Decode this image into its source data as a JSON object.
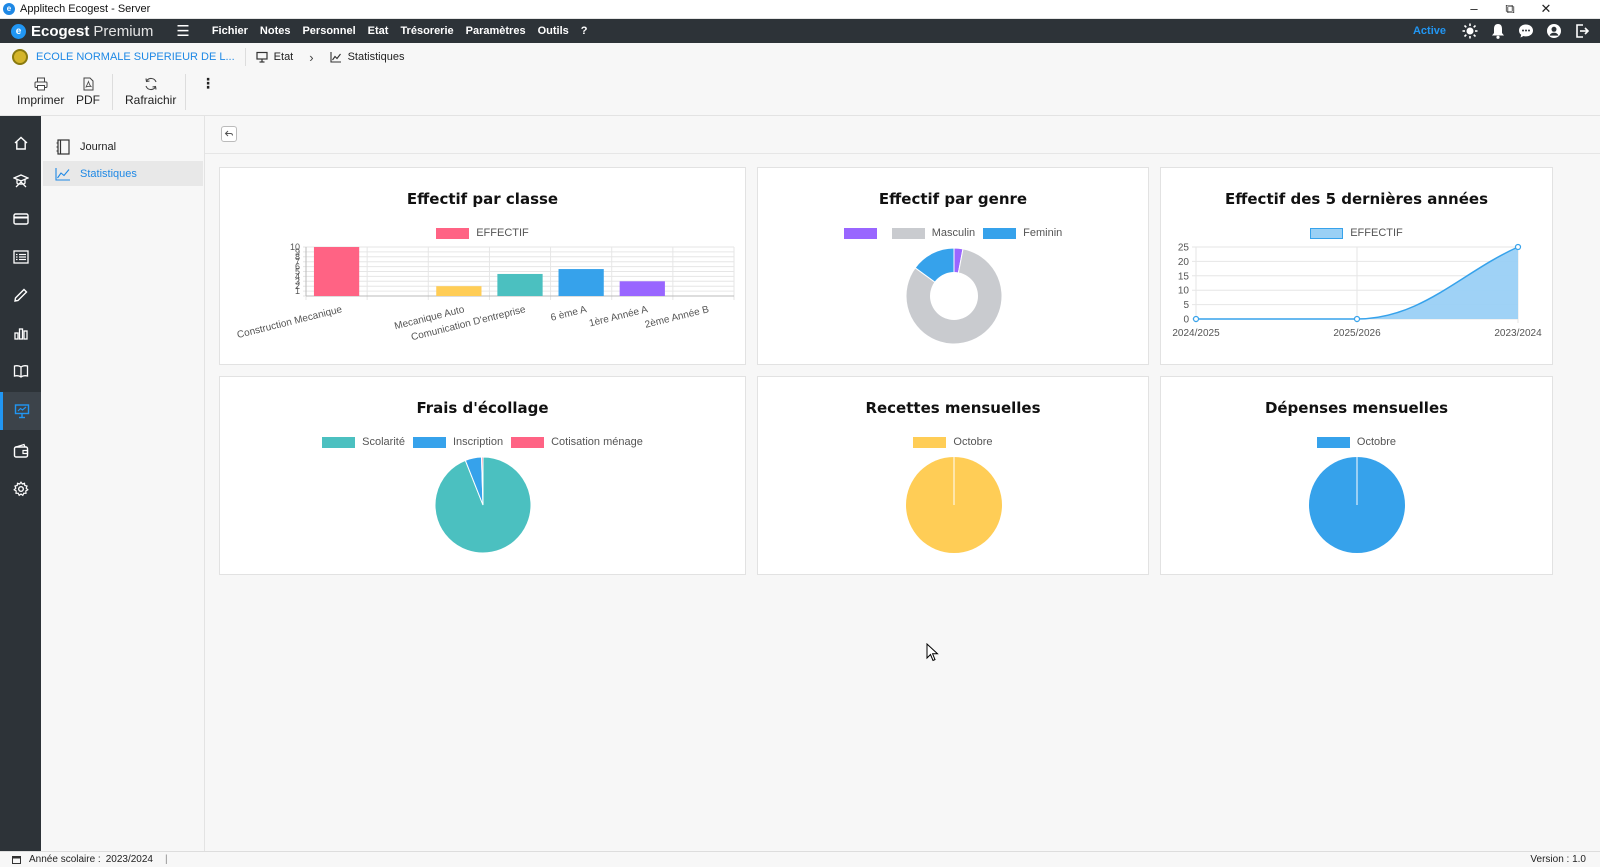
{
  "window": {
    "title": "Applitech Ecogest - Server"
  },
  "menubar": {
    "brand_bold": "Ecogest",
    "brand_light": "Premium",
    "items": [
      "Fichier",
      "Notes",
      "Personnel",
      "Etat",
      "Trésorerie",
      "Paramètres",
      "Outils",
      "?"
    ],
    "status_label": "Active",
    "accent": "#2196f3"
  },
  "breadcrumb": {
    "school": "ECOLE NORMALE SUPERIEUR DE L...",
    "level1": "Etat",
    "separator": "›",
    "level2": "Statistiques"
  },
  "toolbar": {
    "print_label": "Imprimer",
    "pdf_label": "PDF",
    "refresh_label": "Rafraichir",
    "more_label": "⋮"
  },
  "subnav": {
    "items": [
      {
        "label": "Journal",
        "icon": "journal-icon"
      },
      {
        "label": "Statistiques",
        "icon": "line-chart-icon"
      }
    ]
  },
  "rail": {
    "icons": [
      "home-icon",
      "graduation-cap-icon",
      "credit-card-icon",
      "list-icon",
      "pencil-icon",
      "bar-chart-icon",
      "book-icon",
      "presentation-chart-icon",
      "wallet-icon",
      "settings-icon"
    ]
  },
  "cards": {
    "classe": {
      "title": "Effectif par classe",
      "legend": "EFFECTIF"
    },
    "genre": {
      "title": "Effectif par genre",
      "legend": [
        "",
        "Masculin",
        "Feminin"
      ]
    },
    "annees": {
      "title": "Effectif des 5 dernières années",
      "legend": "EFFECTIF"
    },
    "ecolage": {
      "title": "Frais d'écollage",
      "legend": [
        "Scolarité",
        "Inscription",
        "Cotisation ménage"
      ]
    },
    "recettes": {
      "title": "Recettes mensuelles",
      "legend": "Octobre"
    },
    "depenses": {
      "title": "Dépenses mensuelles",
      "legend": "Octobre"
    }
  },
  "colors": {
    "red": "#ff6384",
    "yellow": "#ffcd56",
    "teal": "#4bc0c0",
    "blue": "#36a2eb",
    "purple": "#9966ff",
    "grey": "#c9cbcf",
    "lightblue": "#9ad0f5"
  },
  "chart_data": [
    {
      "type": "bar",
      "title": "Effectif par classe",
      "categories": [
        "Construction Mecanique",
        "",
        "Mecanique Auto",
        "Comunication D'entreprise",
        "6 ème A",
        "1ère Année A",
        "2ème Année B"
      ],
      "series": [
        {
          "name": "EFFECTIF",
          "values": [
            10,
            0,
            2,
            4.5,
            5.5,
            3,
            0
          ]
        }
      ],
      "bar_colors": [
        "#ff6384",
        "#ff9f40",
        "#ffcd56",
        "#4bc0c0",
        "#36a2eb",
        "#9966ff",
        "#c9cbcf"
      ],
      "ylim": [
        0,
        10
      ],
      "yticks": [
        "10",
        "9",
        "8",
        "7",
        "6",
        "5",
        "4",
        "3",
        "2",
        "1"
      ]
    },
    {
      "type": "pie",
      "title": "Effectif par genre",
      "labels": [
        "",
        "Masculin",
        "Feminin"
      ],
      "values": [
        3,
        82,
        15
      ],
      "colors": [
        "#9966ff",
        "#c9cbcf",
        "#36a2eb"
      ],
      "donut": true
    },
    {
      "type": "area",
      "title": "Effectif des 5 dernières années",
      "x": [
        "2024/2025",
        "2025/2026",
        "2023/2024"
      ],
      "series": [
        {
          "name": "EFFECTIF",
          "values": [
            0,
            0,
            25
          ]
        }
      ],
      "ylim": [
        0,
        25
      ],
      "yticks": [
        "25",
        "20",
        "15",
        "10",
        "5",
        "0"
      ]
    },
    {
      "type": "pie",
      "title": "Frais d'écollage",
      "labels": [
        "Scolarité",
        "Inscription",
        "Cotisation ménage"
      ],
      "values": [
        94,
        5.5,
        0.5
      ],
      "colors": [
        "#4bc0c0",
        "#36a2eb",
        "#ff6384"
      ]
    },
    {
      "type": "pie",
      "title": "Recettes mensuelles",
      "labels": [
        "Octobre"
      ],
      "values": [
        100
      ],
      "colors": [
        "#ffcd56"
      ]
    },
    {
      "type": "pie",
      "title": "Dépenses mensuelles",
      "labels": [
        "Octobre"
      ],
      "values": [
        100
      ],
      "colors": [
        "#36a2eb"
      ]
    }
  ],
  "statusbar": {
    "year_label": "Année scolaire :",
    "year_value": "2023/2024",
    "version": "Version : 1.0"
  }
}
